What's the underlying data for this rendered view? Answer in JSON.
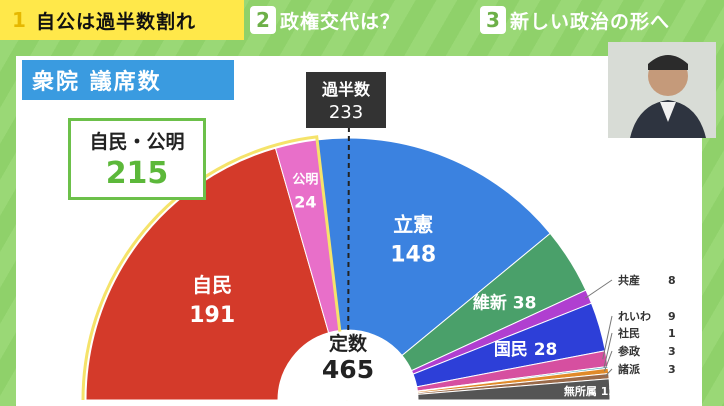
{
  "tabs": [
    {
      "num": "1",
      "label": "自公は過半数割れ"
    },
    {
      "num": "2",
      "label": "政権交代は？"
    },
    {
      "num": "3",
      "label": "新しい政治の形へ"
    }
  ],
  "title": "衆院  議席数",
  "majority": {
    "label": "過半数",
    "value": "233"
  },
  "coalition": {
    "label": "自民・公明",
    "value": "215"
  },
  "chart_data": {
    "type": "pie",
    "title": "衆院 議席数",
    "total_label": "定数",
    "total": 465,
    "majority_line": 233,
    "series": [
      {
        "name": "自民",
        "value": 191,
        "color": "#d43a2a"
      },
      {
        "name": "公明",
        "value": 24,
        "color": "#e86fc9"
      },
      {
        "name": "立憲",
        "value": 148,
        "color": "#3b82e0"
      },
      {
        "name": "維新",
        "value": 38,
        "color": "#4aa06a"
      },
      {
        "name": "共産",
        "value": 8,
        "color": "#b03fd0"
      },
      {
        "name": "国民",
        "value": 28,
        "color": "#2d3fd8"
      },
      {
        "name": "れいわ",
        "value": 9,
        "color": "#d64fa0"
      },
      {
        "name": "社民",
        "value": 1,
        "color": "#3aa0b8"
      },
      {
        "name": "参政",
        "value": 3,
        "color": "#e08a2a"
      },
      {
        "name": "諸派",
        "value": 3,
        "color": "#9a6a4a"
      },
      {
        "name": "無所属",
        "value": 12,
        "color": "#555555"
      }
    ]
  }
}
